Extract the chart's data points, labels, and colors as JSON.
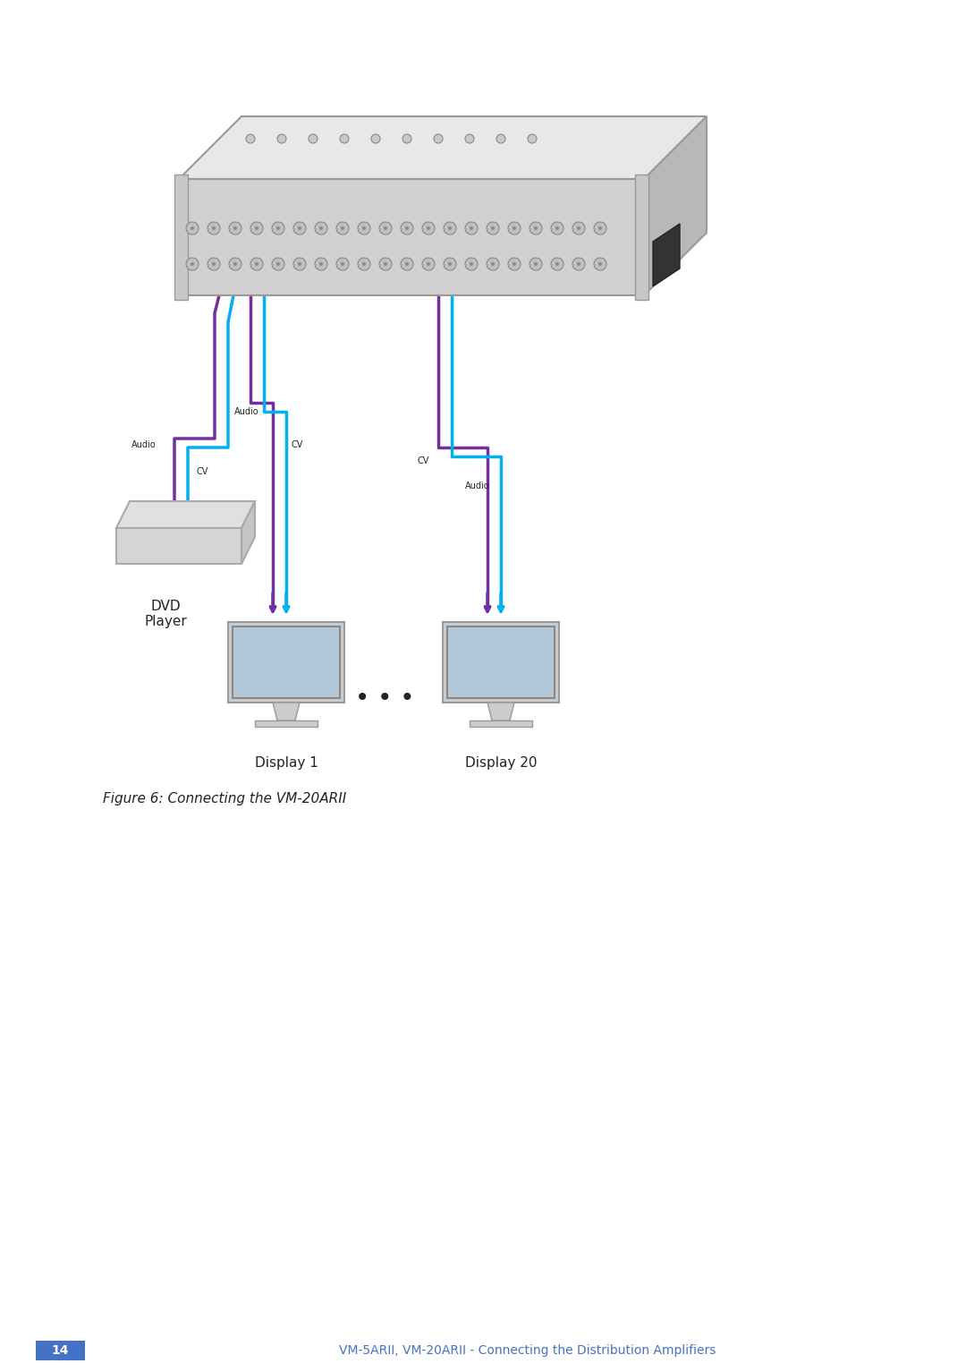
{
  "title": "Figure 6: Connecting the VM-20ARII",
  "footer_left_text": "14",
  "footer_left_bg": "#4472c4",
  "footer_right_text": "VM-5ARII, VM-20ARII - Connecting the Distribution Amplifiers",
  "footer_right_color": "#4472c4",
  "bg_color": "#ffffff",
  "dvd_label": "DVD\nPlayer",
  "display1_label": "Display 1",
  "display20_label": "Display 20",
  "audio_color": "#7030a0",
  "cv_color": "#00b0f0",
  "label_audio": "Audio",
  "label_cv": "CV"
}
